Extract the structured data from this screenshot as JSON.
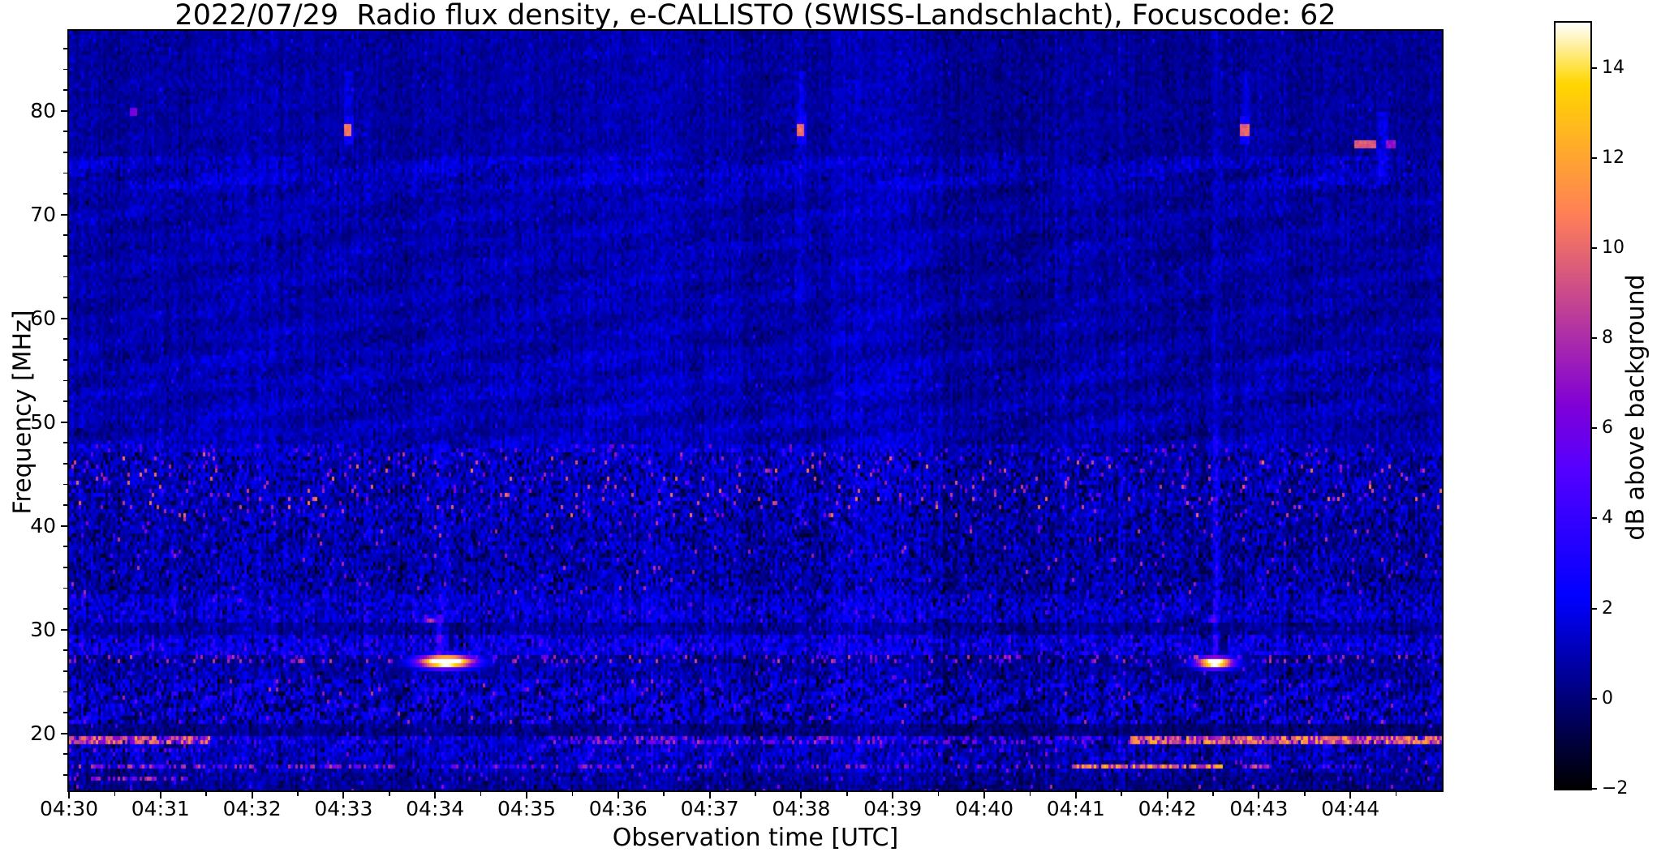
{
  "chart_data": {
    "type": "heatmap",
    "title": "2022/07/29  Radio flux density, e-CALLISTO (SWISS-Landschlacht), Focuscode: 62",
    "xlabel": "Observation time [UTC]",
    "ylabel": "Frequency [MHz]",
    "colorbar_label": "dB above background",
    "colormap": "gnuplot2",
    "clim": [
      -2,
      15
    ],
    "xlim_minutes": [
      0,
      15
    ],
    "x_tick_labels": [
      "04:30",
      "04:31",
      "04:32",
      "04:33",
      "04:34",
      "04:35",
      "04:36",
      "04:37",
      "04:38",
      "04:39",
      "04:40",
      "04:41",
      "04:42",
      "04:43",
      "04:44"
    ],
    "x_tick_minutes": [
      0,
      1,
      2,
      3,
      4,
      5,
      6,
      7,
      8,
      9,
      10,
      11,
      12,
      13,
      14
    ],
    "x_minor_step": 0.5,
    "ylim": [
      14.5,
      87.7
    ],
    "y_tick_values": [
      80,
      70,
      60,
      50,
      40,
      30,
      20
    ],
    "y_tick_labels": [
      "80",
      "70",
      "60",
      "50",
      "40",
      "30",
      "20"
    ],
    "y_minor_step": 2,
    "colorbar_tick_values": [
      14,
      12,
      10,
      8,
      6,
      4,
      2,
      0,
      -2
    ],
    "colorbar_tick_labels": [
      "14",
      "12",
      "10",
      "8",
      "6",
      "4",
      "2",
      "0",
      "−2"
    ],
    "grid": false,
    "noise_bands": [
      {
        "f0": 75.5,
        "f1": 87.7,
        "mean": 0.65,
        "std": 0.4,
        "col": 0.3,
        "speck": 0.003,
        "slo": 1.8,
        "shi": 3.2,
        "blotch": 0.15
      },
      {
        "f0": 72.6,
        "f1": 75.5,
        "mean": 1.05,
        "std": 0.55,
        "col": 0.35,
        "speck": 0.01,
        "slo": 2.0,
        "shi": 3.6,
        "blotch": 0.55
      },
      {
        "f0": 57.0,
        "f1": 72.6,
        "mean": 0.78,
        "std": 0.46,
        "col": 0.32,
        "speck": 0.004,
        "slo": 1.8,
        "shi": 3.2,
        "blotch": 0.38
      },
      {
        "f0": 48.0,
        "f1": 57.0,
        "mean": 0.92,
        "std": 0.52,
        "col": 0.36,
        "speck": 0.006,
        "slo": 2.0,
        "shi": 3.6,
        "blotch": 0.48
      },
      {
        "f0": 47.2,
        "f1": 48.0,
        "mean": 1.25,
        "std": 0.8,
        "col": 0.4,
        "speck": 0.05,
        "slo": 3.0,
        "shi": 7.0
      },
      {
        "f0": 41.0,
        "f1": 47.2,
        "mean": 1.05,
        "std": 0.92,
        "col": 0.46,
        "speck": 0.055,
        "slo": 3.5,
        "shi": 10.5,
        "dark": 0.07
      },
      {
        "f0": 33.5,
        "f1": 41.0,
        "mean": 0.88,
        "std": 0.85,
        "col": 0.46,
        "speck": 0.02,
        "slo": 3.0,
        "shi": 8.5,
        "dark": 0.09
      },
      {
        "f0": 30.8,
        "f1": 33.5,
        "mean": 1.35,
        "std": 1.0,
        "col": 0.62,
        "speck": 0.012,
        "slo": 3.0,
        "shi": 6.5
      },
      {
        "f0": 29.8,
        "f1": 30.8,
        "mean": 0.5,
        "std": 0.6,
        "col": 0.5,
        "speck": 0.004,
        "slo": 2.5,
        "shi": 4.5
      },
      {
        "f0": 27.6,
        "f1": 29.8,
        "mean": 1.7,
        "std": 1.1,
        "col": 0.72,
        "speck": 0.01,
        "slo": 3.0,
        "shi": 6.0
      },
      {
        "f0": 26.9,
        "f1": 27.6,
        "mean": 0.45,
        "std": 0.7,
        "col": 0.45,
        "speck": 0.05,
        "slo": 3.0,
        "shi": 8.5
      },
      {
        "f0": 25.4,
        "f1": 26.9,
        "mean": 0.7,
        "std": 0.8,
        "col": 0.5,
        "speck": 0.02,
        "slo": 2.5,
        "shi": 6.0
      },
      {
        "f0": 21.1,
        "f1": 25.4,
        "mean": 1.3,
        "std": 1.05,
        "col": 0.62,
        "speck": 0.028,
        "slo": 3.0,
        "shi": 8.5,
        "wave": 0.55,
        "dark": 0.1
      },
      {
        "f0": 19.9,
        "f1": 21.1,
        "mean": 0.1,
        "std": 0.5,
        "col": 0.4,
        "speck": 0.008,
        "slo": 2.0,
        "shi": 5.0
      },
      {
        "f0": 19.0,
        "f1": 19.9,
        "mean": 1.1,
        "std": 0.9,
        "col": 0.5,
        "speck": 0.02,
        "slo": 2.5,
        "shi": 5.0
      },
      {
        "f0": 17.5,
        "f1": 19.0,
        "mean": 1.05,
        "std": 0.9,
        "col": 0.56,
        "speck": 0.02,
        "slo": 3.0,
        "shi": 7.0,
        "wave": 0.4
      },
      {
        "f0": 16.6,
        "f1": 17.5,
        "mean": 0.85,
        "std": 0.85,
        "col": 0.5,
        "speck": 0.02,
        "slo": 3.0,
        "shi": 7.0
      },
      {
        "f0": 15.3,
        "f1": 16.6,
        "mean": 0.4,
        "std": 0.65,
        "col": 0.45,
        "speck": 0.02,
        "slo": 2.5,
        "shi": 6.0
      },
      {
        "f0": 14.4,
        "f1": 15.3,
        "mean": 0.25,
        "std": 0.6,
        "col": 0.45,
        "speck": 0.028,
        "slo": 3.0,
        "shi": 8.0
      }
    ],
    "rfi_line_segments": [
      {
        "f0": 19.0,
        "f1": 19.9,
        "segs": [
          [
            0,
            1.55,
            0.9,
            5,
            12
          ],
          [
            1.55,
            5.2,
            0.12,
            2.5,
            5
          ],
          [
            5.2,
            8.9,
            0.45,
            3,
            8.5
          ],
          [
            8.9,
            11.6,
            0.3,
            3,
            7
          ],
          [
            11.6,
            15,
            0.95,
            6,
            12.5
          ]
        ]
      },
      {
        "f0": 16.65,
        "f1": 17.35,
        "segs": [
          [
            0,
            3.3,
            0.5,
            3.5,
            9
          ],
          [
            3.3,
            10.95,
            0.3,
            3,
            8
          ],
          [
            10.95,
            12.6,
            0.92,
            6,
            13
          ],
          [
            12.6,
            12.82,
            0.1,
            2,
            4
          ],
          [
            12.82,
            13.1,
            0.75,
            5,
            10
          ],
          [
            13.1,
            15,
            0.22,
            2.5,
            6
          ]
        ]
      },
      {
        "f0": 15.5,
        "f1": 16.2,
        "segs": [
          [
            0,
            1.3,
            0.5,
            3.5,
            9
          ],
          [
            1.3,
            15,
            0.06,
            2.5,
            6
          ]
        ]
      },
      {
        "f0": 18.3,
        "f1": 18.9,
        "segs": [
          [
            0,
            1.2,
            0.35,
            3,
            7.5
          ]
        ]
      },
      {
        "f0": 26.9,
        "f1": 27.6,
        "segs": [
          [
            0,
            15,
            0.1,
            3.5,
            9
          ]
        ]
      }
    ],
    "vertical_streaks": [
      {
        "t": 4.05,
        "f0": 27.5,
        "f1": 31.6,
        "st": 0.035,
        "amp": 3.0
      },
      {
        "t": 4.05,
        "f0": 31.6,
        "f1": 48.0,
        "st": 0.03,
        "amp": 0.9
      },
      {
        "t": 12.53,
        "f0": 27.5,
        "f1": 50.0,
        "st": 0.03,
        "amp": 1.8
      },
      {
        "t": 12.53,
        "f0": 50.0,
        "f1": 87.7,
        "st": 0.03,
        "amp": 0.5
      },
      {
        "t": 3.05,
        "f0": 79.0,
        "f1": 84.0,
        "st": 0.04,
        "amp": 1.2
      },
      {
        "t": 8.0,
        "f0": 79.0,
        "f1": 84.0,
        "st": 0.04,
        "amp": 1.2
      },
      {
        "t": 12.85,
        "f0": 79.0,
        "f1": 84.0,
        "st": 0.04,
        "amp": 1.1
      },
      {
        "t": 14.35,
        "f0": 73.0,
        "f1": 80.0,
        "st": 0.06,
        "amp": 1.5
      },
      {
        "t": 8.0,
        "f0": 60.0,
        "f1": 78.0,
        "st": 0.05,
        "amp": 0.5
      }
    ],
    "point_sources": [
      {
        "t": 3.05,
        "f": 78.15,
        "wt": 0.05,
        "hf": 1.25,
        "v": 2.6
      },
      {
        "t": 3.05,
        "f": 78.15,
        "wt": 0.045,
        "hf": 0.45,
        "v": 10.3
      },
      {
        "t": 8.0,
        "f": 78.15,
        "wt": 0.05,
        "hf": 1.25,
        "v": 2.6
      },
      {
        "t": 8.0,
        "f": 78.15,
        "wt": 0.045,
        "hf": 0.45,
        "v": 10.3
      },
      {
        "t": 12.85,
        "f": 78.2,
        "wt": 0.05,
        "hf": 1.25,
        "v": 2.6
      },
      {
        "t": 12.85,
        "f": 78.2,
        "wt": 0.045,
        "hf": 0.45,
        "v": 9.8
      },
      {
        "t": 14.15,
        "f": 76.7,
        "wt": 0.12,
        "hf": 0.4,
        "v": 9.5
      },
      {
        "t": 14.45,
        "f": 76.8,
        "wt": 0.05,
        "hf": 0.45,
        "v": 7.0
      },
      {
        "t": 0.7,
        "f": 79.9,
        "wt": 0.04,
        "hf": 0.3,
        "v": 6.2
      }
    ],
    "bursts": [
      {
        "t": 4.12,
        "f": 27.1,
        "st": 0.3,
        "sf": 0.62,
        "peak": 20
      },
      {
        "t": 3.95,
        "f": 31.1,
        "st": 0.08,
        "sf": 0.3,
        "peak": 9
      },
      {
        "t": 12.52,
        "f": 27.0,
        "st": 0.2,
        "sf": 0.55,
        "peak": 18
      },
      {
        "t": 12.5,
        "f": 31.2,
        "st": 0.06,
        "sf": 0.28,
        "peak": 8
      }
    ],
    "dark_columns": [
      {
        "t": 4.18,
        "f0": 27.8,
        "f1": 31.0,
        "wt": 0.035,
        "cap": 0.0
      },
      {
        "t": 12.62,
        "f0": 27.8,
        "f1": 30.5,
        "wt": 0.03,
        "cap": 0.2
      }
    ],
    "notable_features": [
      {
        "time": "04:34",
        "frequency_mhz": 27,
        "description": "intense narrowband emission blob, saturated white-yellow core"
      },
      {
        "time": "04:42.5",
        "frequency_mhz": 27,
        "description": "second intense narrowband emission blob with faint vertical streak"
      },
      {
        "time": "04:33",
        "frequency_mhz": 78,
        "description": "brief orange point emission"
      },
      {
        "time": "04:38",
        "frequency_mhz": 78,
        "description": "brief orange point emission"
      },
      {
        "time": "04:42.9",
        "frequency_mhz": 78,
        "description": "brief orange point emission"
      },
      {
        "time": "04:44.2",
        "frequency_mhz": 76.7,
        "description": "short horizontal orange dash"
      },
      {
        "time": "04:42-04:45",
        "frequency_mhz": 19.5,
        "description": "continuous bright orange RFI band"
      },
      {
        "time": "04:41-04:42.6",
        "frequency_mhz": 17,
        "description": "bright yellow-orange RFI band"
      },
      {
        "time": "04:30-04:31.5",
        "frequency_mhz": 19.5,
        "description": "bright orange RFI band at start"
      },
      {
        "frequency_range_mhz": [
          41,
          47
        ],
        "description": "speckled pink/orange interference band"
      },
      {
        "frequency_range_mhz": [
          21,
          27
        ],
        "description": "dense blue shortwave interference with wavy structure"
      }
    ]
  }
}
